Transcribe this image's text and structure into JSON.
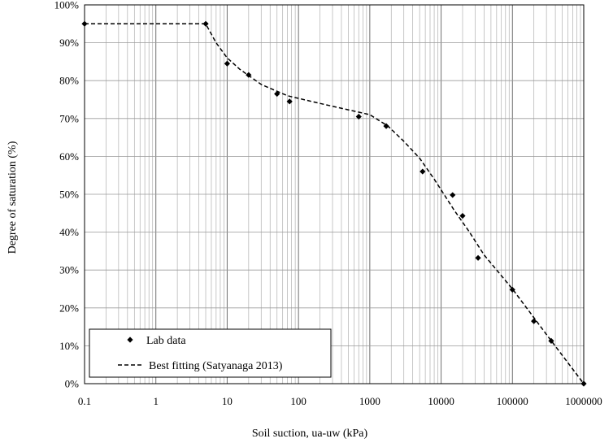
{
  "chart_data": {
    "type": "scatter",
    "title": "",
    "xlabel": "Soil suction, ua-uw (kPa)",
    "ylabel": "Degree of saturation (%)",
    "x_scale": "log",
    "xlim": [
      0.1,
      1000000
    ],
    "ylim": [
      0,
      100
    ],
    "grid": true,
    "legend_position": "bottom-left",
    "x_tick_labels": [
      "0.1",
      "1",
      "10",
      "100",
      "1000",
      "10000",
      "100000",
      "1000000"
    ],
    "y_tick_labels": [
      "0%",
      "10%",
      "20%",
      "30%",
      "40%",
      "50%",
      "60%",
      "70%",
      "80%",
      "90%",
      "100%"
    ],
    "series": [
      {
        "name": "Lab data",
        "kind": "markers",
        "marker": "diamond",
        "color": "#000000",
        "x": [
          0.1,
          5,
          10,
          20,
          50,
          75,
          700,
          1700,
          5500,
          14500,
          20000,
          33000,
          100000,
          200000,
          350000,
          1000000
        ],
        "y": [
          95,
          95,
          84.5,
          81.5,
          76.5,
          74.5,
          70.5,
          68,
          56,
          49.8,
          44.3,
          33.2,
          24.8,
          16.5,
          11.3,
          0
        ]
      },
      {
        "name": "Best fitting (Satyanaga 2013)",
        "kind": "line",
        "dash": "dashed",
        "color": "#000000",
        "x": [
          0.1,
          5,
          7,
          10,
          15,
          30,
          70,
          200,
          1000,
          1800,
          3000,
          5000,
          8000,
          15000,
          25000,
          40000,
          100000,
          300000,
          1000000
        ],
        "y": [
          95,
          95,
          90,
          86,
          83,
          79,
          76,
          74,
          71,
          68,
          64,
          59.5,
          54,
          46,
          40,
          34,
          25,
          13,
          0
        ]
      }
    ]
  }
}
